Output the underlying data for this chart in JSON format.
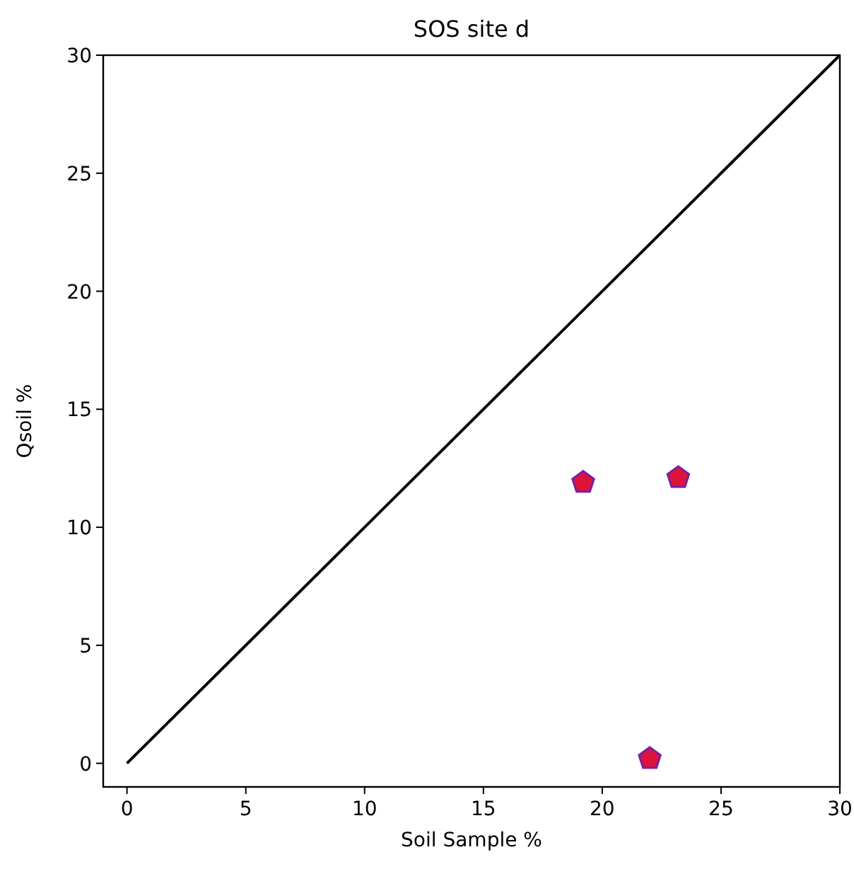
{
  "chart_data": {
    "type": "scatter",
    "title": "SOS site d",
    "xlabel": "Soil Sample %",
    "ylabel": "Qsoil %",
    "xlim": [
      -1,
      30
    ],
    "ylim": [
      -1,
      30
    ],
    "xticks": [
      0,
      5,
      10,
      15,
      20,
      25,
      30
    ],
    "yticks": [
      0,
      5,
      10,
      15,
      20,
      25,
      30
    ],
    "grid": false,
    "series": [
      {
        "type": "line",
        "color": "#000000",
        "x": [
          0,
          30
        ],
        "values": [
          0,
          30
        ]
      },
      {
        "color": "#dc143c",
        "x": [
          19.2,
          23.2,
          22.0
        ],
        "values": [
          11.9,
          12.1,
          0.2
        ]
      }
    ]
  }
}
